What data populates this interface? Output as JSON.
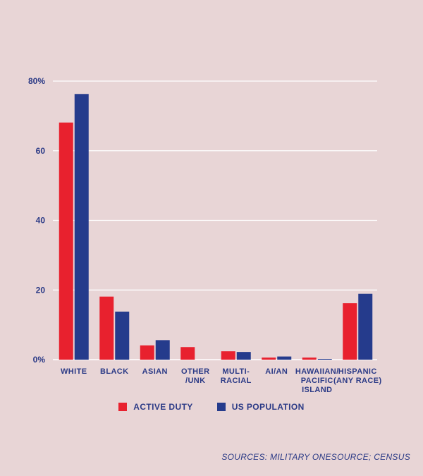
{
  "chart_data": {
    "type": "bar",
    "categories": [
      [
        "WHITE"
      ],
      [
        "BLACK"
      ],
      [
        "ASIAN"
      ],
      [
        "OTHER",
        "/UNK"
      ],
      [
        "MULTI-",
        "RACIAL"
      ],
      [
        "AI/AN"
      ],
      [
        "HAWAIIAN/",
        "PACIFIC",
        "ISLAND"
      ],
      [
        "HISPANIC",
        "(ANY RACE)"
      ]
    ],
    "series": [
      {
        "name": "ACTIVE DUTY",
        "color": "#e8212e",
        "values": [
          68.1,
          18.1,
          4.1,
          3.6,
          2.4,
          0.6,
          0.6,
          16.2
        ]
      },
      {
        "name": "US POPULATION",
        "color": "#253b8c",
        "values": [
          76.3,
          13.8,
          5.6,
          null,
          2.2,
          0.9,
          0.2,
          18.9
        ]
      }
    ],
    "yticks": [
      "0%",
      "20",
      "40",
      "60",
      "80%"
    ],
    "ylim": [
      0,
      80
    ],
    "grid": true,
    "legend_position": "bottom"
  },
  "source_text": "SOURCES: MILITARY ONESOURCE; CENSUS"
}
